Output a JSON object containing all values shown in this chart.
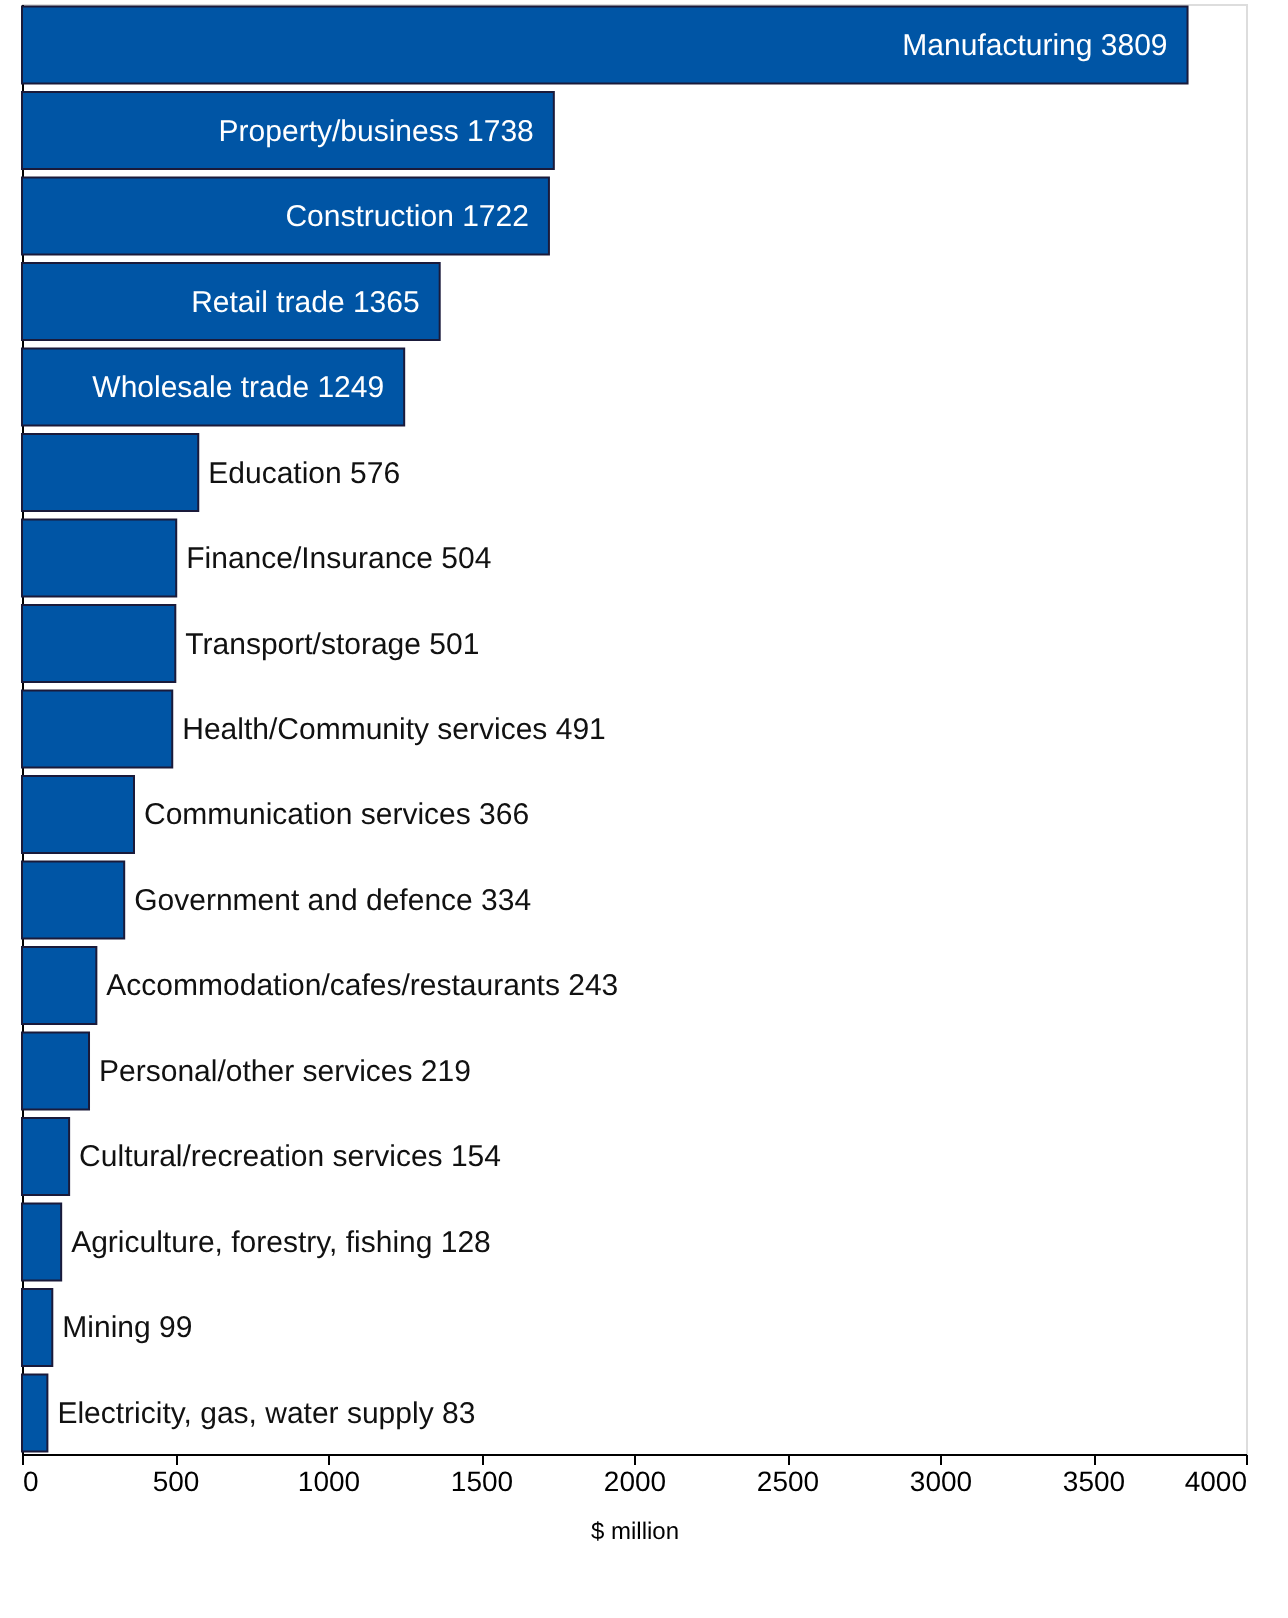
{
  "chart_data": {
    "type": "bar",
    "orientation": "horizontal",
    "xlabel": "$ million",
    "categories": [
      "Manufacturing 3809",
      "Property/business 1738",
      "Construction 1722",
      "Retail trade 1365",
      "Wholesale trade 1249",
      "Education 576",
      "Finance/Insurance 504",
      "Transport/storage 501",
      "Health/Community services 491",
      "Communication services 366",
      "Government and defence 334",
      "Accommodation/cafes/restaurants 243",
      "Personal/other services 219",
      "Cultural/recreation services 154",
      "Agriculture, forestry, fishing 128",
      "Mining 99",
      "Electricity, gas, water supply 83"
    ],
    "values": [
      3809,
      1738,
      1722,
      1365,
      1249,
      576,
      504,
      501,
      491,
      366,
      334,
      243,
      219,
      154,
      128,
      99,
      83
    ],
    "color": "#0055a5",
    "xlim": [
      0,
      4000
    ],
    "xticks": [
      0,
      500,
      1000,
      1500,
      2000,
      2500,
      3000,
      3500,
      4000
    ],
    "tick_labels": "x"
  }
}
